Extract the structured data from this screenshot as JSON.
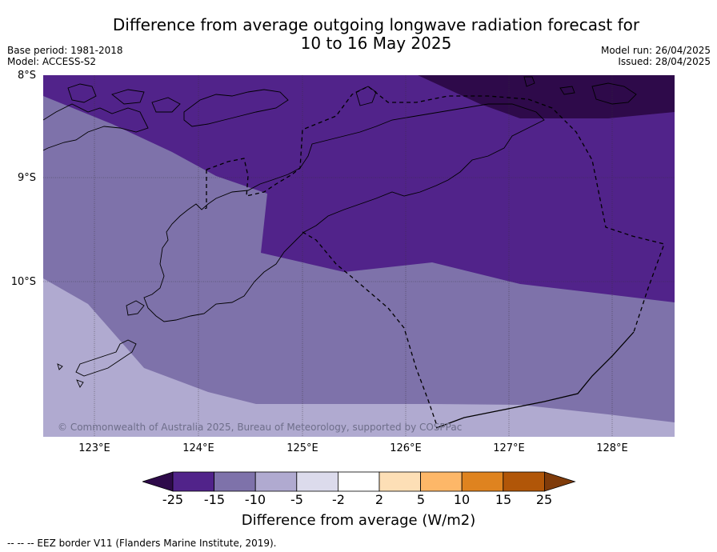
{
  "title": {
    "line1": "Difference from average outgoing longwave radiation forecast for",
    "line2": "10 to 16 May 2025"
  },
  "meta": {
    "base_period": "Base period: 1981-2018",
    "model": "Model: ACCESS-S2",
    "model_run": "Model run: 26/04/2025",
    "issued": "Issued: 28/04/2025"
  },
  "map": {
    "lat_labels": [
      "8°S",
      "9°S",
      "10°S"
    ],
    "lon_labels": [
      "123°E",
      "124°E",
      "125°E",
      "126°E",
      "127°E",
      "128°E"
    ],
    "copyright": "© Commonwealth of Australia 2025, Bureau of Meteorology, supported by COSPPac"
  },
  "colorbar": {
    "ticks": [
      "-25",
      "-15",
      "-10",
      "-5",
      "-2",
      "2",
      "5",
      "10",
      "15",
      "25"
    ],
    "colors": [
      "#2e0a4a",
      "#51238a",
      "#7e72aa",
      "#b0aad0",
      "#dcdbec",
      "#ffffff",
      "#fddfb6",
      "#fdb768",
      "#df831f",
      "#b15608",
      "#7f3b0a"
    ],
    "label": "Difference from average (W/m2)"
  },
  "footnote": "--  --  -- EEZ border V11 (Flanders Marine Institute, 2019).",
  "colors": {
    "darkest": "#2e0a4a",
    "dark": "#51238a",
    "mid": "#7e72aa",
    "light": "#b0aad0"
  }
}
